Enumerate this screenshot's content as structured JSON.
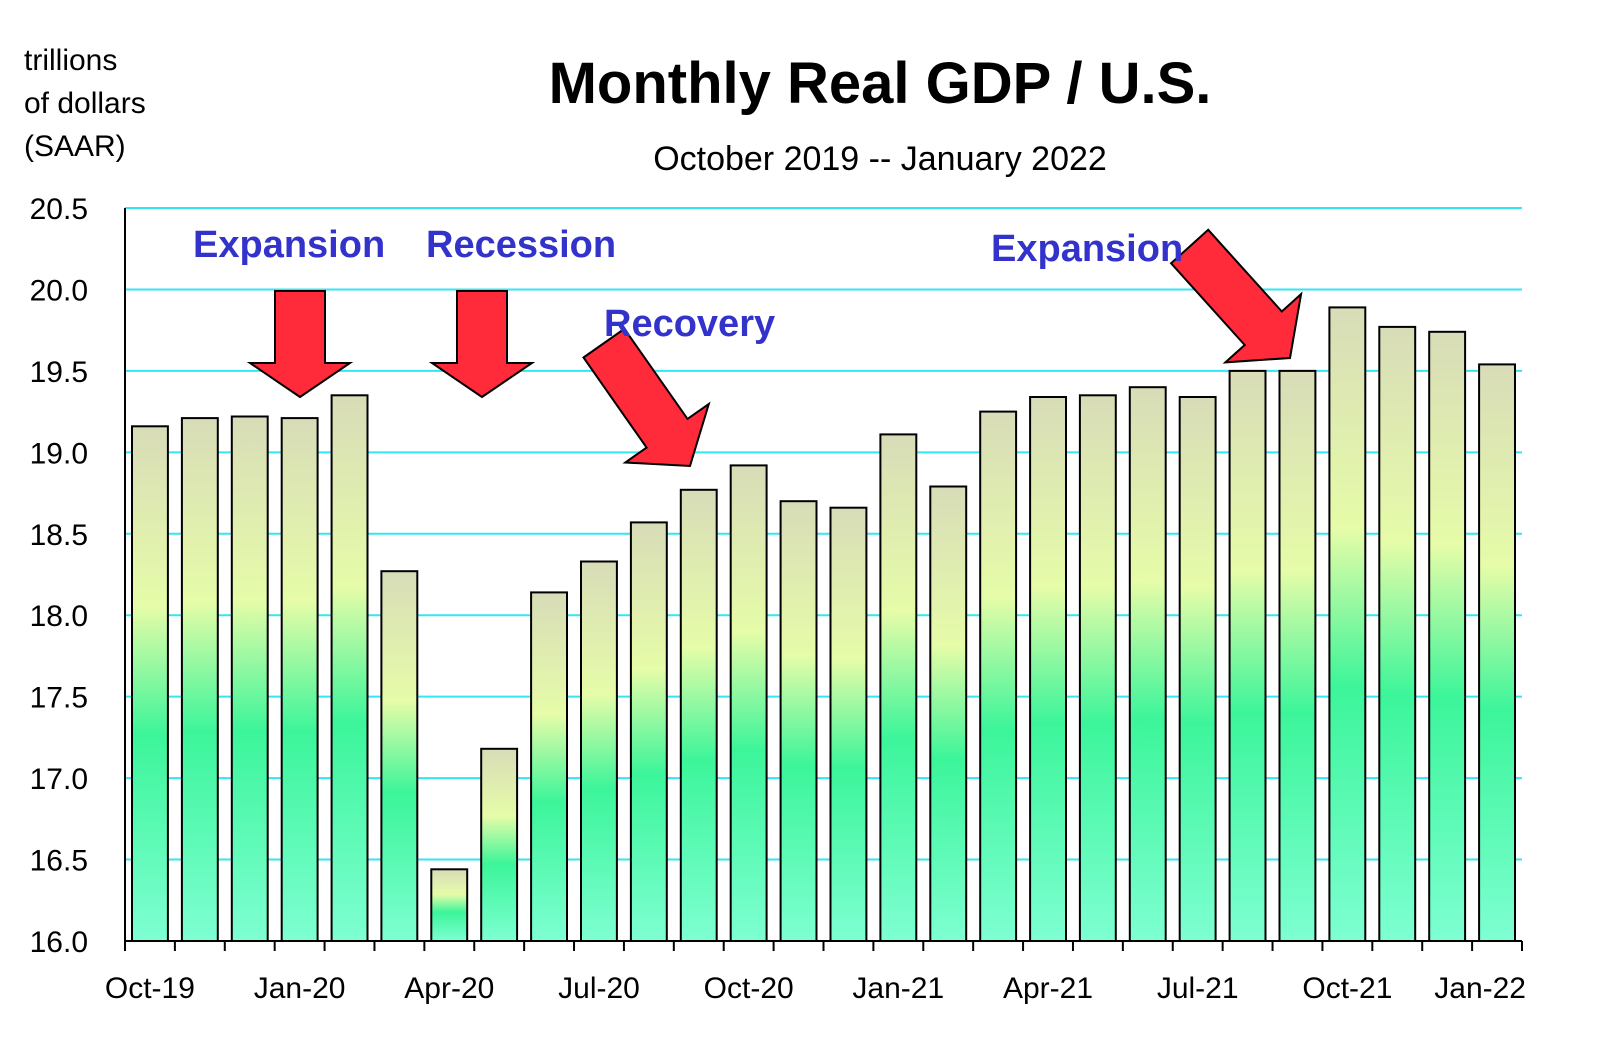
{
  "chart_data": {
    "type": "bar",
    "title": "Monthly Real GDP / U.S.",
    "subtitle": "October 2019 -- January 2022",
    "y_unit_label": [
      "trillions",
      "of dollars",
      "(SAAR)"
    ],
    "ylim": [
      16.0,
      20.5
    ],
    "yticks": [
      "16.0",
      "16.5",
      "17.0",
      "17.5",
      "18.0",
      "18.5",
      "19.0",
      "19.5",
      "20.0",
      "20.5"
    ],
    "grid": true,
    "legend": "none",
    "colors": {
      "gradient_top": "#d8dcb8",
      "gradient_mid": "#e6fca8",
      "gradient_low": "#3cf59a",
      "gradient_bottom": "#7effd2",
      "grid": "#33e6f2",
      "annotation": "#3333cc",
      "arrow": "#ff2a3a"
    },
    "categories": [
      "Oct-19",
      "Nov-19",
      "Dec-19",
      "Jan-20",
      "Feb-20",
      "Mar-20",
      "Apr-20",
      "May-20",
      "Jun-20",
      "Jul-20",
      "Aug-20",
      "Sep-20",
      "Oct-20",
      "Nov-20",
      "Dec-20",
      "Jan-21",
      "Feb-21",
      "Mar-21",
      "Apr-21",
      "May-21",
      "Jun-21",
      "Jul-21",
      "Aug-21",
      "Sep-21",
      "Oct-21",
      "Nov-21",
      "Dec-21",
      "Jan-22"
    ],
    "values": [
      19.16,
      19.21,
      19.22,
      19.21,
      19.35,
      18.27,
      16.44,
      17.18,
      18.14,
      18.33,
      18.57,
      18.77,
      18.92,
      18.7,
      18.66,
      19.11,
      18.79,
      19.25,
      19.34,
      19.35,
      19.4,
      19.34,
      19.5,
      19.5,
      19.89,
      19.77,
      19.74,
      19.54
    ],
    "x_tick_labels": [
      {
        "label": "Oct-19",
        "index": 0
      },
      {
        "label": "Jan-20",
        "index": 3
      },
      {
        "label": "Apr-20",
        "index": 6
      },
      {
        "label": "Jul-20",
        "index": 9
      },
      {
        "label": "Oct-20",
        "index": 12
      },
      {
        "label": "Jan-21",
        "index": 15
      },
      {
        "label": "Apr-21",
        "index": 18
      },
      {
        "label": "Jul-21",
        "index": 21
      },
      {
        "label": "Oct-21",
        "index": 24
      },
      {
        "label": "Jan-22",
        "index": 27
      }
    ],
    "annotations": [
      {
        "text": "Expansion",
        "index": 3
      },
      {
        "text": "Recession",
        "index": 6
      },
      {
        "text": "Recovery",
        "index": 10
      },
      {
        "text": "Expansion",
        "index": 23
      }
    ]
  }
}
